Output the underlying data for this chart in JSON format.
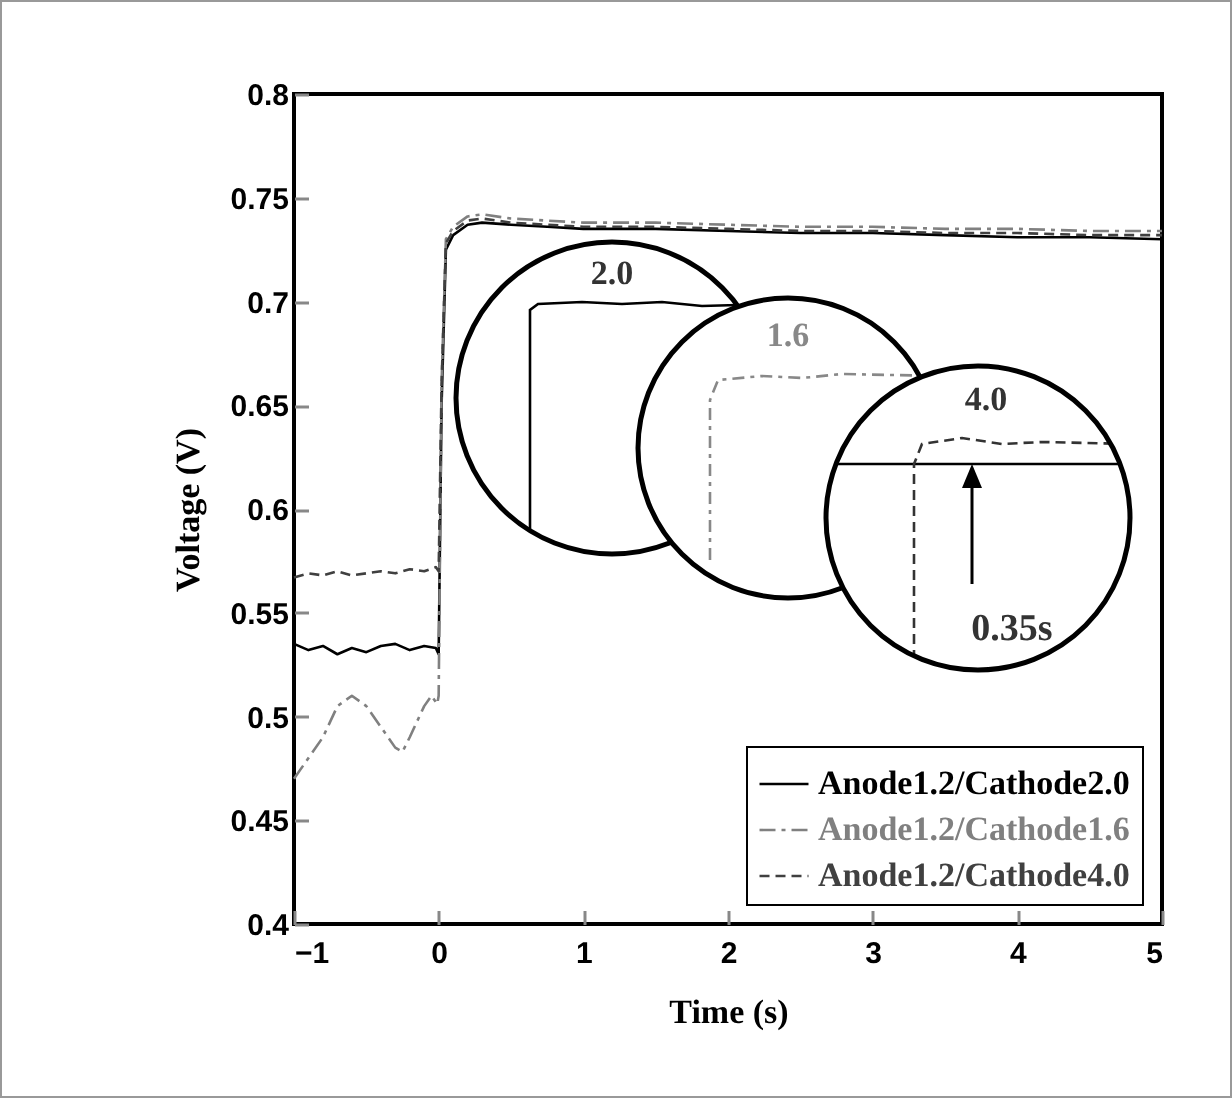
{
  "chart_data": {
    "type": "line",
    "xlabel": "Time (s)",
    "ylabel": "Voltage (V)",
    "xlim": [
      -1,
      5
    ],
    "ylim": [
      0.4,
      0.8
    ],
    "xticks": [
      -1,
      0,
      1,
      2,
      3,
      4,
      5
    ],
    "yticks": [
      0.4,
      0.45,
      0.5,
      0.55,
      0.6,
      0.65,
      0.7,
      0.75,
      0.8
    ],
    "legend": "bottom right",
    "grid": false,
    "marker": "none",
    "annotations": [
      "2.0",
      "1.6",
      "4.0",
      "0.35s"
    ],
    "series": [
      {
        "name": "Anode1.2/Cathode2.0",
        "color": "#000000",
        "line_style": "solid",
        "x": [
          -1,
          -0.9,
          -0.8,
          -0.7,
          -0.6,
          -0.5,
          -0.4,
          -0.3,
          -0.2,
          -0.1,
          -0.02,
          0,
          0.02,
          0.05,
          0.1,
          0.2,
          0.3,
          0.5,
          0.75,
          1,
          1.5,
          2,
          2.5,
          3,
          3.5,
          4,
          4.5,
          5
        ],
        "values": [
          0.535,
          0.532,
          0.534,
          0.53,
          0.533,
          0.531,
          0.534,
          0.535,
          0.532,
          0.534,
          0.533,
          0.53,
          0.65,
          0.725,
          0.732,
          0.737,
          0.738,
          0.737,
          0.736,
          0.735,
          0.735,
          0.734,
          0.733,
          0.733,
          0.732,
          0.731,
          0.731,
          0.73
        ]
      },
      {
        "name": "Anode1.2/Cathode1.6",
        "color": "#808080",
        "line_style": "dashed",
        "x": [
          -1,
          -0.9,
          -0.8,
          -0.7,
          -0.6,
          -0.5,
          -0.4,
          -0.3,
          -0.25,
          -0.2,
          -0.1,
          -0.05,
          -0.01,
          0,
          0.02,
          0.05,
          0.1,
          0.2,
          0.3,
          0.5,
          0.75,
          1,
          1.5,
          2,
          2.5,
          3,
          3.5,
          4,
          4.5,
          5
        ],
        "values": [
          0.47,
          0.48,
          0.49,
          0.505,
          0.51,
          0.505,
          0.495,
          0.485,
          0.483,
          0.49,
          0.505,
          0.51,
          0.506,
          0.51,
          0.66,
          0.73,
          0.736,
          0.741,
          0.742,
          0.74,
          0.739,
          0.738,
          0.738,
          0.737,
          0.736,
          0.736,
          0.735,
          0.735,
          0.734,
          0.734
        ]
      },
      {
        "name": "Anode1.2/Cathode4.0",
        "color": "#404040",
        "line_style": "dotted",
        "x": [
          -1,
          -0.9,
          -0.8,
          -0.7,
          -0.6,
          -0.5,
          -0.4,
          -0.3,
          -0.2,
          -0.1,
          -0.02,
          0,
          0.02,
          0.05,
          0.1,
          0.2,
          0.3,
          0.5,
          0.75,
          1,
          1.5,
          2,
          2.5,
          3,
          3.5,
          4,
          4.5,
          5
        ],
        "values": [
          0.567,
          0.569,
          0.568,
          0.57,
          0.568,
          0.569,
          0.57,
          0.569,
          0.571,
          0.57,
          0.572,
          0.57,
          0.66,
          0.728,
          0.734,
          0.739,
          0.74,
          0.738,
          0.737,
          0.736,
          0.736,
          0.735,
          0.734,
          0.734,
          0.733,
          0.733,
          0.732,
          0.732
        ]
      }
    ]
  }
}
